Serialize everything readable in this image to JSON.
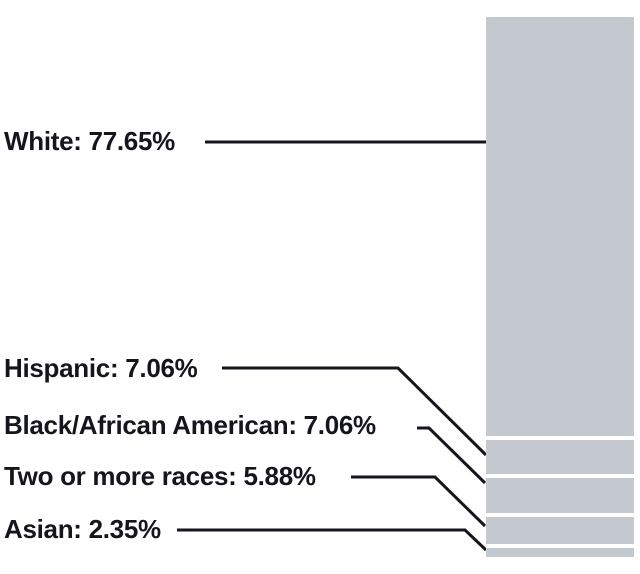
{
  "chart_data": {
    "type": "bar",
    "subtype": "single-stacked-column",
    "categories": [
      "White",
      "Hispanic",
      "Black/African American",
      "Two or more races",
      "Asian"
    ],
    "values": [
      77.65,
      7.06,
      7.06,
      5.88,
      2.35
    ],
    "unit": "%",
    "labels": [
      "White: 77.65%",
      "Hispanic: 7.06%",
      "Black/African American: 7.06%",
      "Two or more races: 5.88%",
      "Asian: 2.35%"
    ],
    "legend_position": "left-callouts",
    "grid": "off",
    "colors": {
      "segment_fill": "#c3c9cf",
      "segment_separator": "#ffffff",
      "callout_line": "#15151e",
      "label_text": "#15151e",
      "background": "#ffffff"
    }
  }
}
